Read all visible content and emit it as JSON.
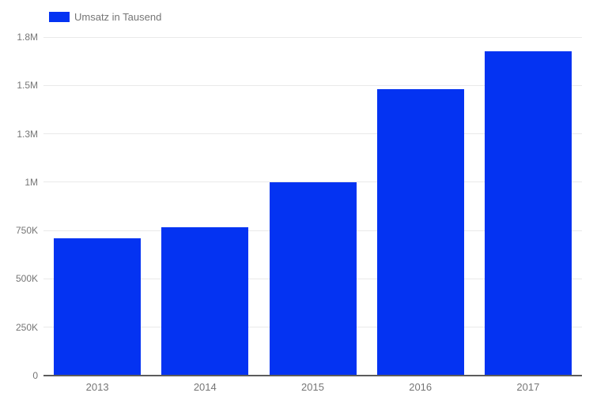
{
  "chart_data": {
    "type": "bar",
    "title": "",
    "legend": {
      "label": "Umsatz in Tausend",
      "position": "top-left"
    },
    "categories": [
      "2013",
      "2014",
      "2015",
      "2016",
      "2017"
    ],
    "series": [
      {
        "name": "Umsatz in Tausend",
        "values": [
          710000,
          765000,
          1000000,
          1480000,
          1675000
        ]
      }
    ],
    "xlabel": "",
    "ylabel": "",
    "ylim": [
      0,
      1750000
    ],
    "y_ticks": [
      {
        "value": 0,
        "label": "0"
      },
      {
        "value": 250000,
        "label": "250K"
      },
      {
        "value": 500000,
        "label": "500K"
      },
      {
        "value": 750000,
        "label": "750K"
      },
      {
        "value": 1000000,
        "label": "1M"
      },
      {
        "value": 1250000,
        "label": "1.3M"
      },
      {
        "value": 1500000,
        "label": "1.5M"
      },
      {
        "value": 1750000,
        "label": "1.8M"
      }
    ],
    "grid": true,
    "legend_position": "top",
    "colors": {
      "bar": "#0433f2",
      "gridline": "#e9e9e9",
      "baseline": "#5c5c5c",
      "tick_label": "#757575",
      "legend_label": "#757575",
      "background": "#ffffff"
    }
  }
}
